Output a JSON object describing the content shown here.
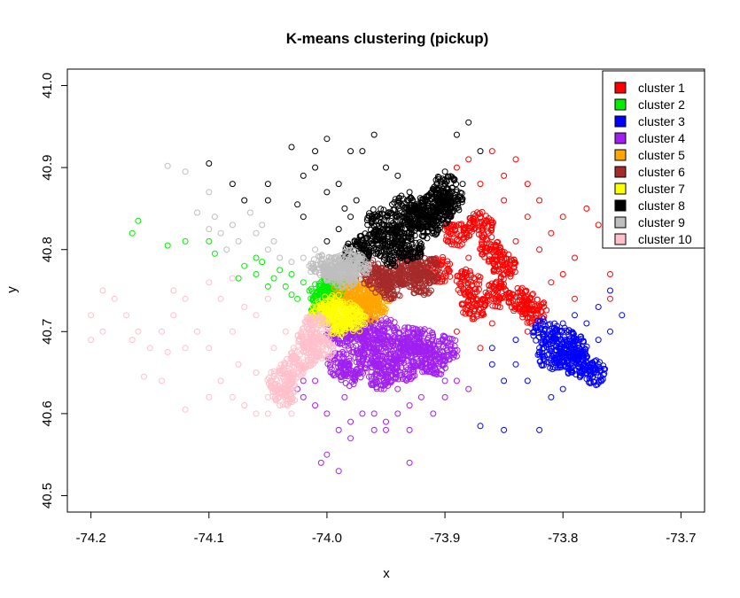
{
  "chart_data": {
    "type": "scatter",
    "title": "K-means clustering (pickup)",
    "xlabel": "x",
    "ylabel": "y",
    "xlim": [
      -74.22,
      -73.68
    ],
    "ylim": [
      40.48,
      41.02
    ],
    "xticks": [
      "-74.2",
      "-74.1",
      "-74.0",
      "-73.9",
      "-73.8",
      "-73.7"
    ],
    "xtick_values": [
      -74.2,
      -74.1,
      -74.0,
      -73.9,
      -73.8,
      -73.7
    ],
    "yticks": [
      "40.5",
      "40.6",
      "40.7",
      "40.8",
      "40.9",
      "41.0"
    ],
    "ytick_values": [
      40.5,
      40.6,
      40.7,
      40.8,
      40.9,
      41.0
    ],
    "grid": false,
    "marker": "open-circle",
    "legend_position": "top-right",
    "series": [
      {
        "name": "cluster 1",
        "color": "#ff0000",
        "core": [
          [
            -73.905,
            40.775
          ],
          [
            -73.88,
            40.76
          ],
          [
            -73.855,
            40.745
          ],
          [
            -73.835,
            40.738
          ],
          [
            -73.825,
            40.725
          ],
          [
            -73.875,
            40.73
          ],
          [
            -73.86,
            40.8
          ],
          [
            -73.87,
            40.83
          ],
          [
            -73.89,
            40.82
          ],
          [
            -73.85,
            40.78
          ]
        ],
        "points": [
          [
            -73.89,
            40.9
          ],
          [
            -73.87,
            40.88
          ],
          [
            -73.86,
            40.92
          ],
          [
            -73.85,
            40.89
          ],
          [
            -73.84,
            40.91
          ],
          [
            -73.83,
            40.88
          ],
          [
            -73.82,
            40.86
          ],
          [
            -73.8,
            40.84
          ],
          [
            -73.78,
            40.85
          ],
          [
            -73.77,
            40.83
          ],
          [
            -73.79,
            40.79
          ],
          [
            -73.81,
            40.76
          ],
          [
            -73.76,
            40.77
          ],
          [
            -73.79,
            40.74
          ],
          [
            -73.87,
            40.84
          ],
          [
            -73.88,
            40.79
          ],
          [
            -73.84,
            40.81
          ],
          [
            -73.86,
            40.71
          ],
          [
            -73.89,
            40.7
          ],
          [
            -73.87,
            40.68
          ],
          [
            -73.83,
            40.7
          ],
          [
            -73.76,
            40.74
          ],
          [
            -73.83,
            40.84
          ],
          [
            -73.9,
            40.86
          ],
          [
            -73.85,
            40.86
          ],
          [
            -73.82,
            40.8
          ],
          [
            -73.81,
            40.82
          ],
          [
            -73.88,
            40.91
          ],
          [
            -73.86,
            40.83
          ],
          [
            -73.8,
            40.77
          ]
        ]
      },
      {
        "name": "cluster 2",
        "color": "#00ee00",
        "core": [
          [
            -74.003,
            40.748
          ],
          [
            -73.993,
            40.742
          ],
          [
            -74.005,
            40.736
          ],
          [
            -73.996,
            40.752
          ]
        ],
        "points": [
          [
            -74.165,
            40.82
          ],
          [
            -74.16,
            40.835
          ],
          [
            -74.135,
            40.805
          ],
          [
            -74.12,
            40.81
          ],
          [
            -74.1,
            40.81
          ],
          [
            -74.095,
            40.795
          ],
          [
            -74.07,
            40.78
          ],
          [
            -74.06,
            40.77
          ],
          [
            -74.055,
            40.785
          ],
          [
            -74.045,
            40.765
          ],
          [
            -74.035,
            40.755
          ],
          [
            -74.03,
            40.745
          ],
          [
            -74.02,
            40.76
          ],
          [
            -74.075,
            40.765
          ],
          [
            -74.05,
            40.755
          ],
          [
            -74.04,
            40.775
          ],
          [
            -74.025,
            40.74
          ],
          [
            -74.015,
            40.75
          ],
          [
            -74.03,
            40.77
          ],
          [
            -74.06,
            40.79
          ]
        ]
      },
      {
        "name": "cluster 3",
        "color": "#0000ff",
        "core": [
          [
            -73.815,
            40.7
          ],
          [
            -73.8,
            40.69
          ],
          [
            -73.79,
            40.68
          ],
          [
            -73.785,
            40.66
          ],
          [
            -73.775,
            40.65
          ],
          [
            -73.81,
            40.67
          ],
          [
            -73.795,
            40.665
          ]
        ],
        "points": [
          [
            -73.76,
            40.75
          ],
          [
            -73.75,
            40.72
          ],
          [
            -73.77,
            40.73
          ],
          [
            -73.78,
            40.71
          ],
          [
            -73.76,
            40.7
          ],
          [
            -73.77,
            40.69
          ],
          [
            -73.78,
            40.67
          ],
          [
            -73.77,
            40.66
          ],
          [
            -73.82,
            40.68
          ],
          [
            -73.84,
            40.66
          ],
          [
            -73.85,
            40.64
          ],
          [
            -73.83,
            40.64
          ],
          [
            -73.81,
            40.62
          ],
          [
            -73.8,
            40.63
          ],
          [
            -73.82,
            40.58
          ],
          [
            -73.85,
            40.58
          ],
          [
            -73.87,
            40.585
          ],
          [
            -73.86,
            40.68
          ],
          [
            -73.84,
            40.69
          ],
          [
            -73.79,
            40.72
          ],
          [
            -73.8,
            40.71
          ],
          [
            -73.86,
            40.66
          ]
        ]
      },
      {
        "name": "cluster 4",
        "color": "#a020f0",
        "core": [
          [
            -73.99,
            40.7
          ],
          [
            -73.975,
            40.69
          ],
          [
            -73.96,
            40.69
          ],
          [
            -73.95,
            40.7
          ],
          [
            -73.94,
            40.68
          ],
          [
            -73.93,
            40.69
          ],
          [
            -73.92,
            40.69
          ],
          [
            -73.965,
            40.67
          ],
          [
            -73.95,
            40.66
          ],
          [
            -73.935,
            40.655
          ],
          [
            -73.955,
            40.645
          ],
          [
            -73.98,
            40.65
          ],
          [
            -73.99,
            40.66
          ],
          [
            -73.92,
            40.67
          ],
          [
            -73.91,
            40.66
          ],
          [
            -73.9,
            40.68
          ],
          [
            -73.97,
            40.71
          ]
        ],
        "points": [
          [
            -74.01,
            40.64
          ],
          [
            -74.02,
            40.62
          ],
          [
            -74.0,
            40.6
          ],
          [
            -73.99,
            40.58
          ],
          [
            -73.98,
            40.57
          ],
          [
            -73.96,
            40.58
          ],
          [
            -73.95,
            40.59
          ],
          [
            -73.94,
            40.6
          ],
          [
            -73.93,
            40.61
          ],
          [
            -73.92,
            40.62
          ],
          [
            -73.91,
            40.6
          ],
          [
            -73.9,
            40.62
          ],
          [
            -73.89,
            40.64
          ],
          [
            -73.88,
            40.63
          ],
          [
            -73.97,
            40.6
          ],
          [
            -73.98,
            40.59
          ],
          [
            -74.0,
            40.55
          ],
          [
            -74.005,
            40.54
          ],
          [
            -73.99,
            40.53
          ],
          [
            -73.93,
            40.54
          ],
          [
            -74.01,
            40.61
          ],
          [
            -74.02,
            40.64
          ],
          [
            -74.025,
            40.63
          ],
          [
            -73.95,
            40.58
          ],
          [
            -73.93,
            40.58
          ],
          [
            -73.96,
            40.6
          ],
          [
            -73.985,
            40.62
          ],
          [
            -73.94,
            40.63
          ],
          [
            -73.89,
            40.67
          ],
          [
            -73.9,
            40.64
          ]
        ]
      },
      {
        "name": "cluster 5",
        "color": "#ffa500",
        "core": [
          [
            -73.983,
            40.752
          ],
          [
            -73.972,
            40.742
          ],
          [
            -73.975,
            40.732
          ],
          [
            -73.962,
            40.726
          ],
          [
            -73.966,
            40.745
          ],
          [
            -73.958,
            40.738
          ]
        ],
        "points": []
      },
      {
        "name": "cluster 6",
        "color": "#a52a2a",
        "core": [
          [
            -73.962,
            40.772
          ],
          [
            -73.945,
            40.768
          ],
          [
            -73.93,
            40.77
          ],
          [
            -73.92,
            40.76
          ],
          [
            -73.945,
            40.755
          ],
          [
            -73.955,
            40.762
          ],
          [
            -73.93,
            40.782
          ],
          [
            -73.915,
            40.775
          ]
        ],
        "points": []
      },
      {
        "name": "cluster 7",
        "color": "#ffff00",
        "core": [
          [
            -73.995,
            40.73
          ],
          [
            -73.985,
            40.722
          ],
          [
            -73.99,
            40.712
          ],
          [
            -73.978,
            40.714
          ],
          [
            -74.003,
            40.722
          ]
        ],
        "points": []
      },
      {
        "name": "cluster 8",
        "color": "#000000",
        "core": [
          [
            -73.965,
            40.805
          ],
          [
            -73.95,
            40.815
          ],
          [
            -73.935,
            40.825
          ],
          [
            -73.925,
            40.84
          ],
          [
            -73.915,
            40.85
          ],
          [
            -73.905,
            40.86
          ],
          [
            -73.9,
            40.875
          ],
          [
            -73.945,
            40.795
          ],
          [
            -73.93,
            40.8
          ],
          [
            -73.975,
            40.795
          ],
          [
            -73.955,
            40.835
          ],
          [
            -73.935,
            40.85
          ],
          [
            -73.915,
            40.83
          ],
          [
            -73.905,
            40.845
          ],
          [
            -73.895,
            40.86
          ]
        ],
        "points": [
          [
            -74.0,
            40.935
          ],
          [
            -74.03,
            40.925
          ],
          [
            -73.96,
            40.94
          ],
          [
            -73.95,
            40.9
          ],
          [
            -73.97,
            40.92
          ],
          [
            -73.98,
            40.92
          ],
          [
            -73.99,
            40.88
          ],
          [
            -74.01,
            40.9
          ],
          [
            -74.02,
            40.89
          ],
          [
            -74.05,
            40.86
          ],
          [
            -74.05,
            40.88
          ],
          [
            -74.07,
            40.86
          ],
          [
            -74.08,
            40.88
          ],
          [
            -74.1,
            40.905
          ],
          [
            -74.025,
            40.855
          ],
          [
            -74.0,
            40.87
          ],
          [
            -73.975,
            40.86
          ],
          [
            -73.94,
            40.89
          ],
          [
            -73.93,
            40.87
          ],
          [
            -73.9,
            40.895
          ],
          [
            -73.89,
            40.94
          ],
          [
            -73.88,
            40.955
          ],
          [
            -73.87,
            40.92
          ],
          [
            -73.885,
            40.88
          ],
          [
            -73.99,
            40.825
          ],
          [
            -73.98,
            40.84
          ],
          [
            -74.0,
            40.81
          ],
          [
            -74.02,
            40.84
          ],
          [
            -73.985,
            40.85
          ],
          [
            -74.01,
            40.92
          ]
        ]
      },
      {
        "name": "cluster 9",
        "color": "#bebebe",
        "core": [
          [
            -73.993,
            40.775
          ],
          [
            -73.983,
            40.785
          ],
          [
            -73.975,
            40.778
          ],
          [
            -73.985,
            40.768
          ],
          [
            -74.003,
            40.778
          ]
        ],
        "points": [
          [
            -74.135,
            40.902
          ],
          [
            -74.12,
            40.895
          ],
          [
            -74.1,
            40.87
          ],
          [
            -74.11,
            40.845
          ],
          [
            -74.095,
            40.84
          ],
          [
            -74.09,
            40.82
          ],
          [
            -74.08,
            40.83
          ],
          [
            -74.075,
            40.81
          ],
          [
            -74.065,
            40.845
          ],
          [
            -74.05,
            40.8
          ],
          [
            -74.04,
            40.79
          ],
          [
            -74.03,
            40.785
          ],
          [
            -74.02,
            40.79
          ],
          [
            -74.01,
            40.8
          ],
          [
            -74.085,
            40.8
          ],
          [
            -74.06,
            40.82
          ],
          [
            -74.045,
            40.81
          ],
          [
            -74.015,
            40.78
          ],
          [
            -74.055,
            40.83
          ],
          [
            -74.1,
            40.825
          ]
        ]
      },
      {
        "name": "cluster 10",
        "color": "#ffc0cb",
        "core": [
          [
            -74.01,
            40.705
          ],
          [
            -74.015,
            40.69
          ],
          [
            -74.005,
            40.68
          ],
          [
            -74.02,
            40.67
          ],
          [
            -74.03,
            40.655
          ],
          [
            -74.04,
            40.64
          ],
          [
            -74.035,
            40.625
          ]
        ],
        "points": [
          [
            -74.19,
            40.75
          ],
          [
            -74.2,
            40.72
          ],
          [
            -74.19,
            40.7
          ],
          [
            -74.18,
            40.74
          ],
          [
            -74.17,
            40.72
          ],
          [
            -74.16,
            40.7
          ],
          [
            -74.15,
            40.68
          ],
          [
            -74.14,
            40.7
          ],
          [
            -74.13,
            40.72
          ],
          [
            -74.12,
            40.68
          ],
          [
            -74.1,
            40.68
          ],
          [
            -74.08,
            40.7
          ],
          [
            -74.07,
            40.73
          ],
          [
            -74.06,
            40.72
          ],
          [
            -74.09,
            40.64
          ],
          [
            -74.08,
            40.62
          ],
          [
            -74.07,
            40.61
          ],
          [
            -74.06,
            40.6
          ],
          [
            -74.05,
            40.6
          ],
          [
            -74.1,
            40.62
          ],
          [
            -74.12,
            40.605
          ],
          [
            -74.14,
            40.64
          ],
          [
            -74.135,
            40.675
          ],
          [
            -74.04,
            40.61
          ],
          [
            -74.06,
            40.65
          ],
          [
            -74.05,
            40.62
          ],
          [
            -74.03,
            40.6
          ],
          [
            -74.11,
            40.7
          ],
          [
            -74.09,
            40.74
          ],
          [
            -74.05,
            40.74
          ],
          [
            -74.1,
            40.76
          ],
          [
            -74.13,
            40.75
          ],
          [
            -74.165,
            40.69
          ],
          [
            -74.155,
            40.645
          ],
          [
            -74.075,
            40.66
          ],
          [
            -74.045,
            40.68
          ],
          [
            -74.035,
            40.7
          ],
          [
            -74.08,
            40.765
          ],
          [
            -74.12,
            40.74
          ],
          [
            -74.2,
            40.69
          ]
        ]
      }
    ]
  }
}
